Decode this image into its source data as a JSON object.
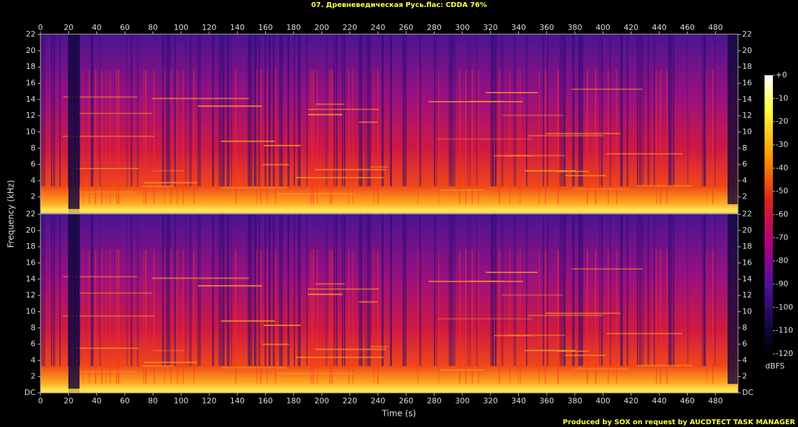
{
  "chart_data": {
    "type": "spectrogram",
    "title": "07. Древневедическая Русь.flac: CDDA 76%",
    "x_label": "Time (s)",
    "y_label": "Frequency (kHz)",
    "xlim": [
      0,
      496
    ],
    "xticks": [
      0,
      20,
      40,
      60,
      80,
      100,
      120,
      140,
      160,
      180,
      200,
      220,
      240,
      260,
      280,
      300,
      320,
      340,
      360,
      380,
      400,
      420,
      440,
      460,
      480
    ],
    "ylim": [
      0,
      22.05
    ],
    "panels": [
      {
        "yticks": [
          2,
          4,
          6,
          8,
          10,
          12,
          14,
          16,
          18,
          20,
          22
        ]
      },
      {
        "yticks": [
          {
            "value": 0,
            "label": "DC"
          },
          2,
          4,
          6,
          8,
          10,
          12,
          14,
          16,
          18,
          20,
          22
        ]
      }
    ],
    "colorbar_label": "dBFS",
    "colorbar_lim": [
      -120,
      0
    ],
    "colorbar_ticks": [
      {
        "value": 0,
        "label": "+0"
      },
      -10,
      -20,
      -30,
      -40,
      -50,
      -60,
      -70,
      -80,
      -90,
      -100,
      -110,
      -120
    ],
    "footer": "Produced by SOX on request by AUCDTECT TASK MANAGER"
  }
}
